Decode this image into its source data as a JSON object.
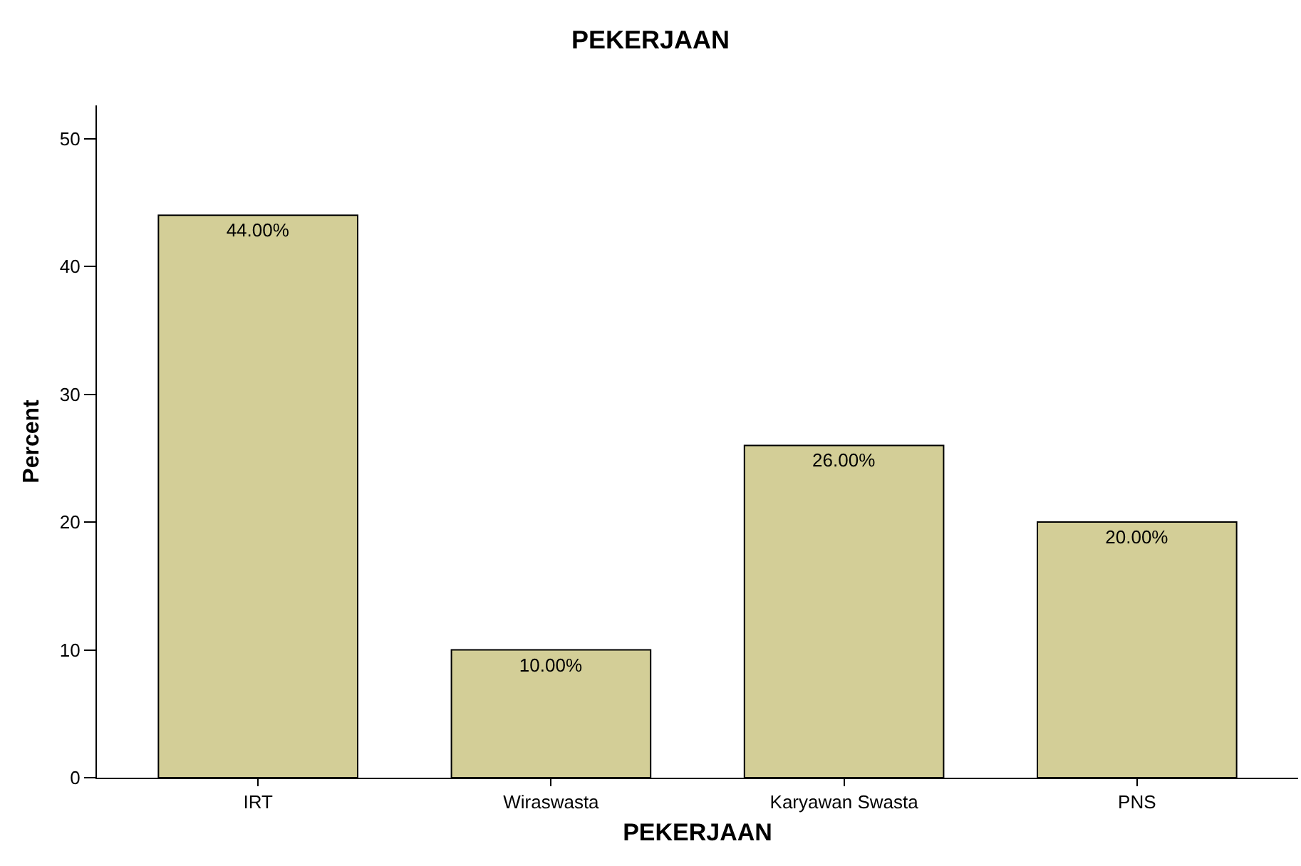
{
  "chart_data": {
    "type": "bar",
    "title": "PEKERJAAN",
    "xlabel": "PEKERJAAN",
    "ylabel": "Percent",
    "categories": [
      "IRT",
      "Wiraswasta",
      "Karyawan Swasta",
      "PNS"
    ],
    "values": [
      44,
      10,
      26,
      20
    ],
    "value_labels": [
      "44.00%",
      "10.00%",
      "26.00%",
      "20.00%"
    ],
    "color": "#d3ce97",
    "ylim": [
      0,
      52.6
    ],
    "yticks": [
      0,
      10,
      20,
      30,
      40,
      50
    ]
  }
}
